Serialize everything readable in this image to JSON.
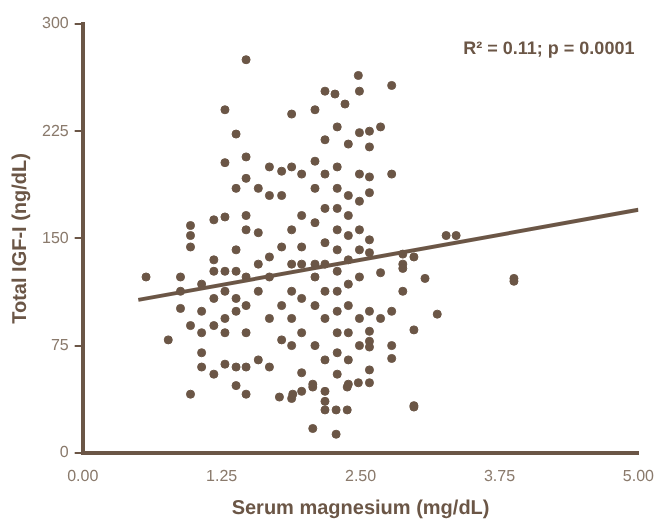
{
  "chart_data": {
    "type": "scatter",
    "xlabel": "Serum magnesium (mg/dL)",
    "ylabel": "Total IGF-I (ng/dL)",
    "annotations": [
      "R² = 0.11; p = 0.0001"
    ],
    "xlim": [
      0,
      5
    ],
    "xticks": [
      {
        "value": 0,
        "label": "0.00"
      },
      {
        "value": 1.25,
        "label": "1.25"
      },
      {
        "value": 2.5,
        "label": "2.50"
      },
      {
        "value": 3.75,
        "label": "3.75"
      },
      {
        "value": 5,
        "label": "5.00"
      }
    ],
    "ylim": [
      0,
      300
    ],
    "yticks": [
      0,
      75,
      150,
      225,
      300
    ],
    "grid": false,
    "legend": false,
    "marker": "circle",
    "series": [
      {
        "color": "#6b5646",
        "x": [
          0.57,
          0.77,
          0.88,
          0.88,
          0.88,
          0.97,
          0.97,
          0.97,
          0.97,
          0.97,
          1.07,
          1.07,
          1.07,
          1.07,
          1.07,
          1.18,
          1.18,
          1.18,
          1.18,
          1.18,
          1.18,
          1.28,
          1.28,
          1.28,
          1.28,
          1.28,
          1.28,
          1.28,
          1.28,
          1.38,
          1.38,
          1.38,
          1.38,
          1.38,
          1.38,
          1.38,
          1.38,
          1.47,
          1.47,
          1.47,
          1.47,
          1.47,
          1.47,
          1.47,
          1.47,
          1.47,
          1.47,
          1.58,
          1.58,
          1.58,
          1.58,
          1.58,
          1.68,
          1.68,
          1.68,
          1.68,
          1.68,
          1.68,
          1.77,
          1.79,
          1.79,
          1.79,
          1.79,
          1.79,
          1.88,
          1.88,
          1.88,
          1.88,
          1.88,
          1.88,
          1.88,
          1.88,
          1.89,
          1.97,
          1.97,
          1.97,
          1.97,
          1.97,
          1.97,
          1.97,
          1.97,
          2.07,
          2.07,
          2.07,
          2.09,
          2.09,
          2.09,
          2.09,
          2.09,
          2.09,
          2.09,
          2.09,
          2.18,
          2.18,
          2.18,
          2.18,
          2.18,
          2.18,
          2.18,
          2.18,
          2.18,
          2.18,
          2.18,
          2.18,
          2.28,
          2.28,
          2.27,
          2.29,
          2.29,
          2.29,
          2.29,
          2.29,
          2.29,
          2.29,
          2.29,
          2.29,
          2.29,
          2.29,
          2.29,
          2.38,
          2.38,
          2.36,
          2.39,
          2.39,
          2.39,
          2.39,
          2.39,
          2.39,
          2.39,
          2.39,
          2.39,
          2.39,
          2.48,
          2.48,
          2.49,
          2.49,
          2.49,
          2.49,
          2.49,
          2.49,
          2.49,
          2.49,
          2.49,
          2.58,
          2.58,
          2.58,
          2.58,
          2.58,
          2.58,
          2.58,
          2.58,
          2.58,
          2.58,
          2.58,
          2.58,
          2.68,
          2.68,
          2.68,
          2.78,
          2.78,
          2.78,
          2.78,
          2.78,
          2.88,
          2.88,
          2.88,
          2.88,
          2.98,
          2.98,
          2.98,
          2.98,
          3.08,
          3.19,
          3.27,
          3.36,
          3.88,
          3.88
        ],
        "values": [
          123,
          79,
          123,
          113,
          101,
          159,
          152,
          144,
          89,
          41,
          118,
          99,
          84,
          70,
          60,
          163,
          135,
          127,
          108,
          89,
          55,
          240,
          203,
          165,
          127,
          113,
          94,
          84,
          62,
          223,
          185,
          142,
          127,
          108,
          99,
          60,
          47,
          275,
          207,
          192,
          166,
          156,
          123,
          103,
          84,
          60,
          41,
          185,
          154,
          132,
          113,
          65,
          200,
          180,
          137,
          123,
          94,
          60,
          39,
          197,
          180,
          144,
          103,
          79,
          237,
          200,
          156,
          132,
          113,
          94,
          75,
          38,
          41,
          195,
          166,
          144,
          132,
          108,
          84,
          56,
          43,
          46,
          48,
          17,
          240,
          204,
          185,
          161,
          132,
          123,
          103,
          75,
          253,
          219,
          195,
          171,
          147,
          132,
          113,
          94,
          65,
          43,
          36,
          30,
          13,
          30,
          251,
          228,
          200,
          185,
          171,
          156,
          142,
          127,
          113,
          99,
          84,
          70,
          55,
          46,
          30,
          244,
          216,
          180,
          166,
          152,
          135,
          118,
          103,
          84,
          65,
          48,
          264,
          49,
          253,
          224,
          195,
          176,
          156,
          142,
          123,
          94,
          75,
          225,
          214,
          193,
          182,
          149,
          140,
          99,
          85,
          78,
          74,
          58,
          49,
          228,
          126,
          94,
          257,
          195,
          99,
          75,
          66,
          139,
          132,
          129,
          113,
          137,
          86,
          33,
          32,
          122,
          97,
          152,
          152,
          122,
          120
        ]
      },
      {
        "type": "line",
        "color": "#6b5646",
        "marker": "none",
        "x": [
          0.5,
          5
        ],
        "values": [
          107,
          170
        ]
      }
    ]
  }
}
